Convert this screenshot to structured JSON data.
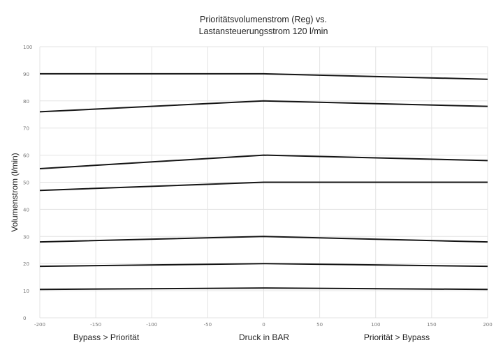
{
  "chart_data": {
    "type": "line",
    "title": [
      "Prioritätsvolumenstrom (Reg) vs.",
      "Lastansteuerungsstrom 120 l/min"
    ],
    "xlabel": "Druck in BAR",
    "xlabel_left": "Bypass > Priorität",
    "xlabel_right": "Priorität > Bypass",
    "ylabel": "Volumenstrom (l/min)",
    "xlim": [
      -200,
      200
    ],
    "ylim": [
      0,
      100
    ],
    "xticks": [
      -200,
      -150,
      -100,
      -50,
      0,
      50,
      100,
      150,
      200
    ],
    "yticks": [
      0,
      10,
      20,
      30,
      40,
      50,
      60,
      70,
      80,
      90,
      100
    ],
    "x": [
      -200,
      0,
      200
    ],
    "grid": true,
    "line_color": "#151515",
    "grid_color": "#e3e3e3",
    "series": [
      {
        "values": [
          90,
          90,
          88
        ]
      },
      {
        "values": [
          76,
          80,
          78
        ]
      },
      {
        "values": [
          55,
          60,
          58
        ]
      },
      {
        "values": [
          47,
          50,
          50
        ]
      },
      {
        "values": [
          28,
          30,
          28
        ]
      },
      {
        "values": [
          19,
          20,
          19
        ]
      },
      {
        "values": [
          10.5,
          11,
          10.5
        ]
      }
    ]
  }
}
